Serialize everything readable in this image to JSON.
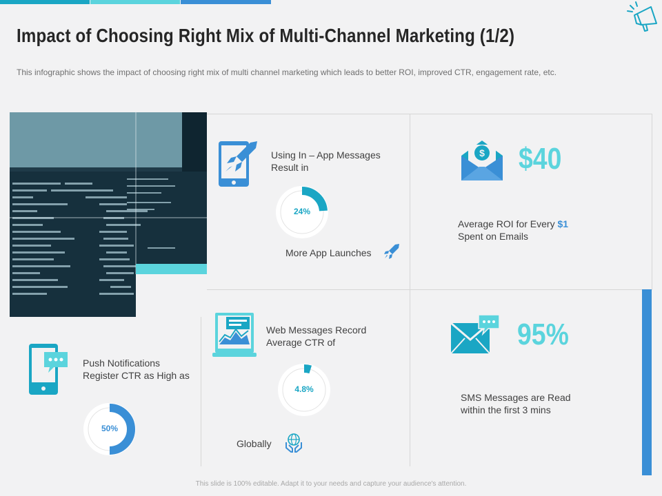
{
  "header": {
    "title": "Impact of Choosing Right Mix of Multi-Channel Marketing (1/2)",
    "subtitle": "This infographic shows the impact of choosing right mix of multi channel marketing which leads to better ROI, improved  CTR,  engagement rate, etc."
  },
  "colors": {
    "accent_dark": "#1aa6c4",
    "accent_light": "#5bd4dd",
    "accent_blue": "#3a8fd6"
  },
  "cards": {
    "app": {
      "heading_line1": "Using In – App Messages",
      "heading_line2": "Result in",
      "value": "24%",
      "percent": 24,
      "caption": "More App Launches"
    },
    "email": {
      "big_value": "$40",
      "caption_line1_prefix": "Average  ROI for Every ",
      "caption_line1_highlight": "$1",
      "caption_line2": "Spent on Emails"
    },
    "push": {
      "heading_line1": "Push Notifications",
      "heading_line2": "Register CTR as High  as",
      "value": "50%",
      "percent": 50
    },
    "web": {
      "heading_line1": "Web Messages Record",
      "heading_line2": "Average  CTR of",
      "value": "4.8%",
      "percent": 4.8,
      "caption": "Globally"
    },
    "sms": {
      "big_value": "95%",
      "caption_line1": "SMS Messages are Read",
      "caption_line2": "within the first 3 mins"
    }
  },
  "icons": [
    "megaphone-icon",
    "tablet-rocket-icon",
    "rocket-icon",
    "envelope-dollar-icon",
    "phone-chat-icon",
    "laptop-chart-icon",
    "globe-hands-icon",
    "envelope-chat-icon"
  ],
  "footer": {
    "text": "This slide is 100% editable. Adapt it to your needs and capture your audience's attention."
  }
}
